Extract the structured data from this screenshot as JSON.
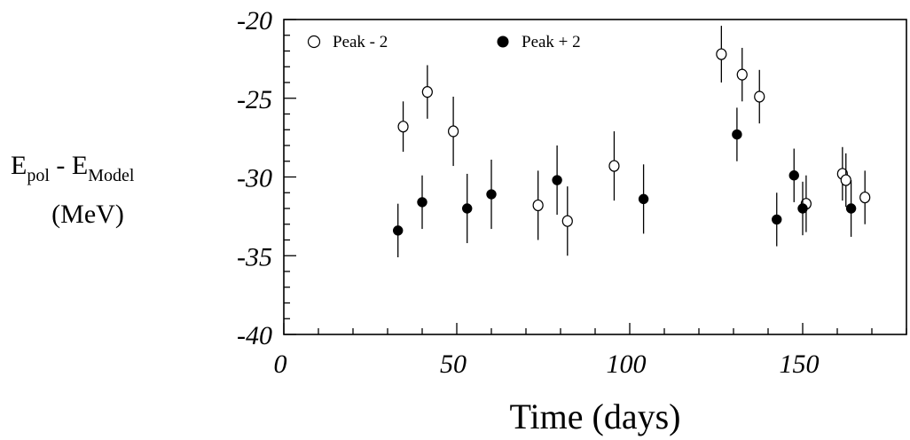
{
  "chart_data": {
    "type": "scatter",
    "xlabel": "Time (days)",
    "ylabel": {
      "line1": {
        "main1": "E",
        "sub1": "pol",
        "mid": " - E",
        "sub2": "Model"
      },
      "line2": "(MeV)"
    },
    "xlim": [
      0,
      180
    ],
    "ylim": [
      -40,
      -20
    ],
    "x_ticks": [
      0,
      50,
      100,
      150
    ],
    "x_tick_labels": [
      "0",
      "50",
      "100",
      "150"
    ],
    "y_ticks": [
      -20,
      -25,
      -30,
      -35,
      -40
    ],
    "y_tick_labels": [
      "-20",
      "-25",
      "-30",
      "-35",
      "-40"
    ],
    "legend_placement": "top",
    "series": [
      {
        "name": "Peak - 2",
        "marker": "open-circle",
        "points": [
          {
            "x": 34.5,
            "y": -26.8,
            "err": 1.6
          },
          {
            "x": 41.5,
            "y": -24.6,
            "err": 1.7
          },
          {
            "x": 49,
            "y": -27.1,
            "err": 2.2
          },
          {
            "x": 73.5,
            "y": -31.8,
            "err": 2.2
          },
          {
            "x": 82,
            "y": -32.8,
            "err": 2.2
          },
          {
            "x": 95.5,
            "y": -29.3,
            "err": 2.2
          },
          {
            "x": 126.5,
            "y": -22.2,
            "err": 1.8
          },
          {
            "x": 132.5,
            "y": -23.5,
            "err": 1.7
          },
          {
            "x": 137.5,
            "y": -24.9,
            "err": 1.7
          },
          {
            "x": 151,
            "y": -31.7,
            "err": 1.8
          },
          {
            "x": 161.5,
            "y": -29.8,
            "err": 1.7
          },
          {
            "x": 162.5,
            "y": -30.2,
            "err": 1.7
          },
          {
            "x": 168,
            "y": -31.3,
            "err": 1.7
          }
        ]
      },
      {
        "name": "Peak + 2",
        "marker": "filled-circle",
        "points": [
          {
            "x": 33,
            "y": -33.4,
            "err": 1.7
          },
          {
            "x": 40,
            "y": -31.6,
            "err": 1.7
          },
          {
            "x": 53,
            "y": -32.0,
            "err": 2.2
          },
          {
            "x": 60,
            "y": -31.1,
            "err": 2.2
          },
          {
            "x": 79,
            "y": -30.2,
            "err": 2.2
          },
          {
            "x": 104,
            "y": -31.4,
            "err": 2.2
          },
          {
            "x": 131,
            "y": -27.3,
            "err": 1.7
          },
          {
            "x": 142.5,
            "y": -32.7,
            "err": 1.7
          },
          {
            "x": 147.5,
            "y": -29.9,
            "err": 1.7
          },
          {
            "x": 150,
            "y": -32.0,
            "err": 1.7
          },
          {
            "x": 164,
            "y": -32.0,
            "err": 1.8
          }
        ]
      }
    ]
  }
}
